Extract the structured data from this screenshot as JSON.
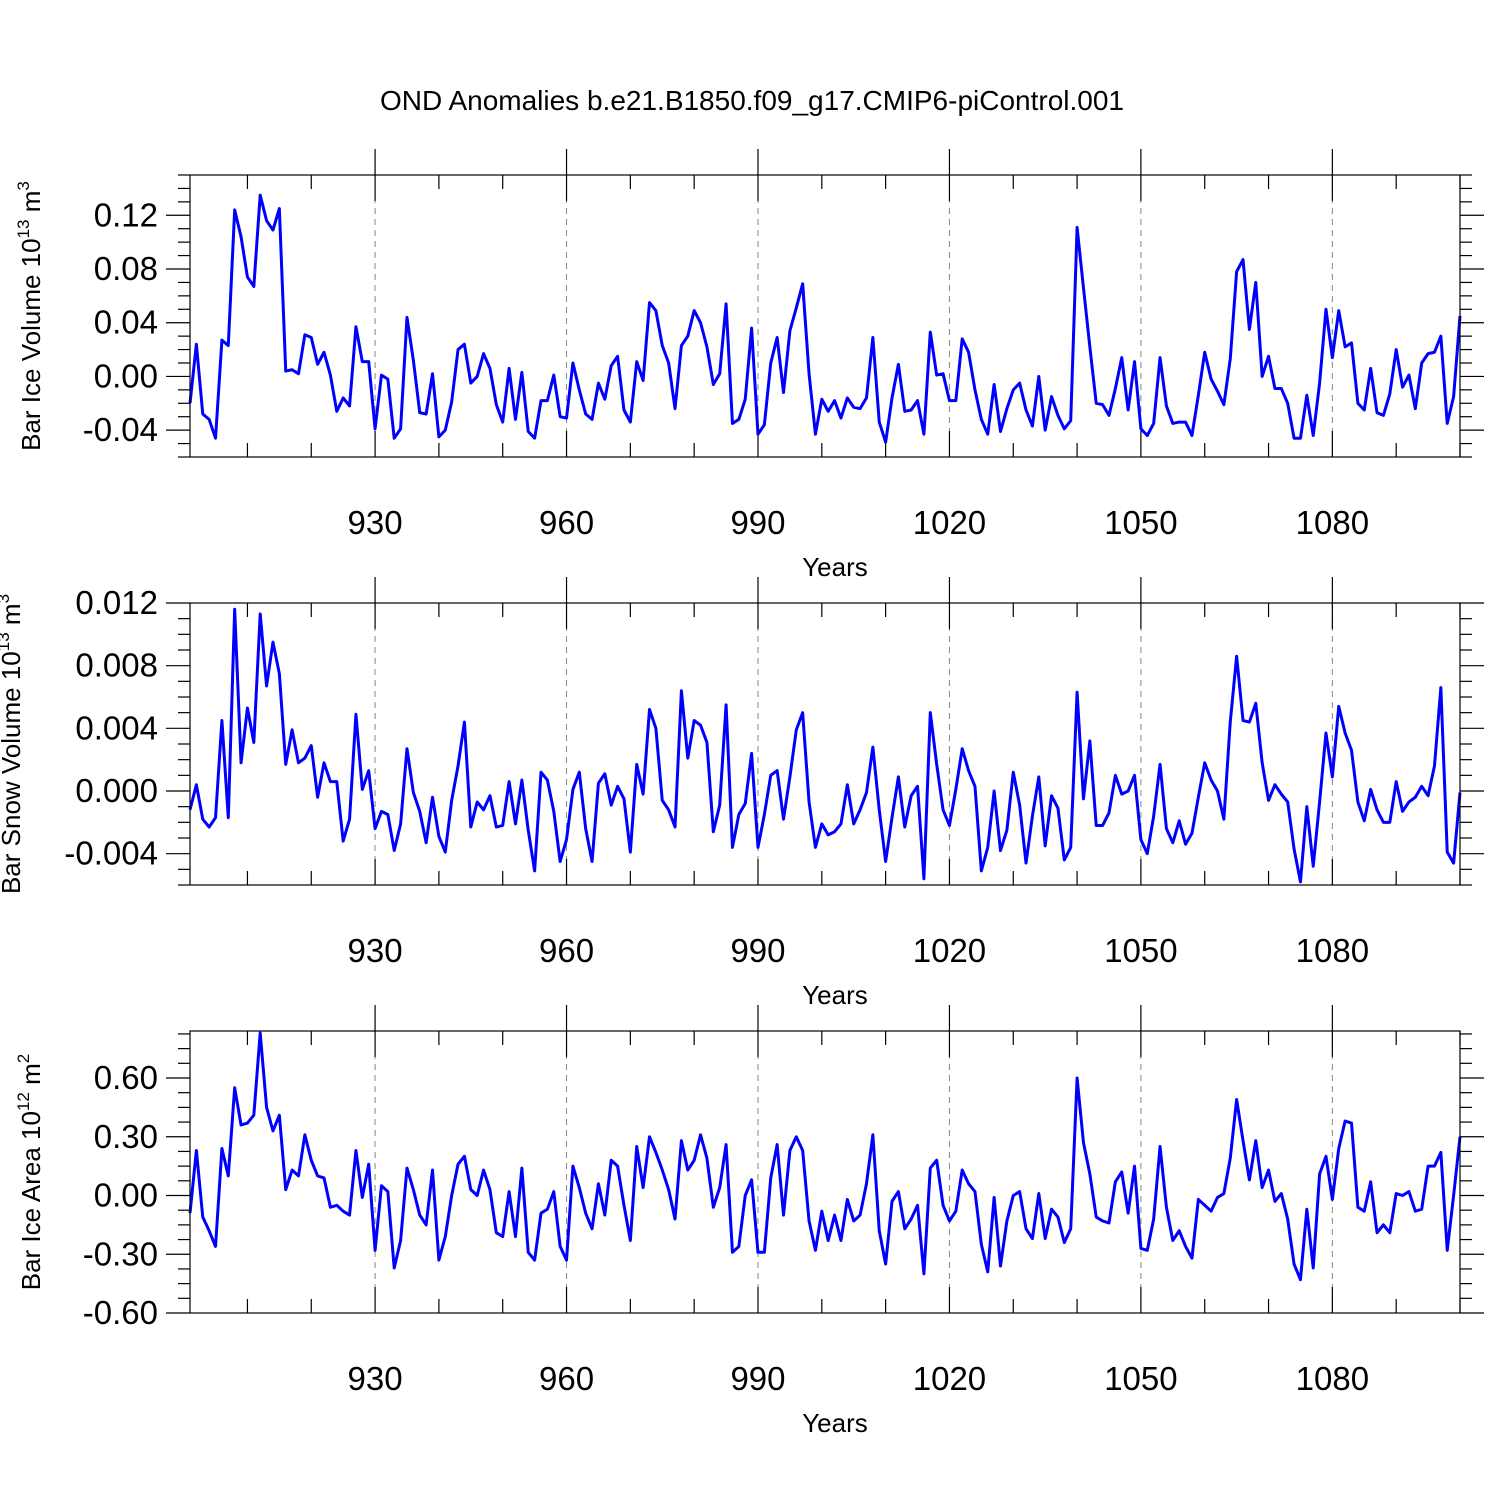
{
  "title": "OND Anomalies b.e21.B1850.f09_g17.CMIP6-piControl.001",
  "colors": {
    "line": "#0000ff",
    "axis": "#000000",
    "grid": "#888888"
  },
  "chart_data": [
    {
      "type": "line",
      "ylabel": {
        "text": "Bar Ice Volume 10",
        "sup": "13",
        "unit": " m",
        "unit_sup": "3"
      },
      "xlabel": "Years",
      "xlim": [
        901,
        1100
      ],
      "ylim": [
        -0.06,
        0.15
      ],
      "xticks": [
        930,
        960,
        990,
        1020,
        1050,
        1080
      ],
      "yticks": [
        -0.04,
        0.0,
        0.04,
        0.08,
        0.12
      ],
      "ytick_labels": [
        "-0.04",
        "0.00",
        "0.04",
        "0.08",
        "0.12"
      ],
      "x_start": 901,
      "values": [
        -0.02,
        0.024,
        -0.028,
        -0.032,
        -0.046,
        0.027,
        0.023,
        0.124,
        0.104,
        0.074,
        0.067,
        0.135,
        0.116,
        0.109,
        0.125,
        0.004,
        0.005,
        0.002,
        0.031,
        0.029,
        0.009,
        0.018,
        0.001,
        -0.026,
        -0.016,
        -0.022,
        0.037,
        0.011,
        0.011,
        -0.039,
        0.001,
        -0.002,
        -0.046,
        -0.039,
        0.044,
        0.012,
        -0.027,
        -0.028,
        0.002,
        -0.045,
        -0.04,
        -0.019,
        0.02,
        0.024,
        -0.005,
        0.0,
        0.017,
        0.006,
        -0.021,
        -0.034,
        0.006,
        -0.032,
        0.003,
        -0.041,
        -0.046,
        -0.018,
        -0.018,
        0.001,
        -0.03,
        -0.031,
        0.01,
        -0.01,
        -0.028,
        -0.032,
        -0.005,
        -0.017,
        0.008,
        0.015,
        -0.025,
        -0.034,
        0.011,
        -0.003,
        0.055,
        0.049,
        0.023,
        0.01,
        -0.024,
        0.023,
        0.03,
        0.049,
        0.04,
        0.022,
        -0.006,
        0.002,
        0.054,
        -0.035,
        -0.032,
        -0.017,
        0.036,
        -0.043,
        -0.036,
        0.01,
        0.029,
        -0.012,
        0.034,
        0.051,
        0.069,
        0.002,
        -0.043,
        -0.017,
        -0.026,
        -0.018,
        -0.031,
        -0.016,
        -0.023,
        -0.024,
        -0.016,
        0.029,
        -0.034,
        -0.049,
        -0.016,
        0.009,
        -0.026,
        -0.025,
        -0.018,
        -0.043,
        0.033,
        0.001,
        0.002,
        -0.018,
        -0.018,
        0.028,
        0.018,
        -0.01,
        -0.032,
        -0.043,
        -0.006,
        -0.041,
        -0.024,
        -0.01,
        -0.005,
        -0.025,
        -0.037,
        0.0,
        -0.04,
        -0.015,
        -0.029,
        -0.039,
        -0.033,
        0.111,
        0.066,
        0.022,
        -0.02,
        -0.021,
        -0.029,
        -0.009,
        0.014,
        -0.025,
        0.011,
        -0.039,
        -0.044,
        -0.035,
        0.014,
        -0.022,
        -0.035,
        -0.034,
        -0.034,
        -0.044,
        -0.014,
        0.018,
        -0.002,
        -0.011,
        -0.021,
        0.013,
        0.078,
        0.087,
        0.035,
        0.07,
        0.0,
        0.015,
        -0.009,
        -0.009,
        -0.02,
        -0.046,
        -0.046,
        -0.014,
        -0.044,
        -0.005,
        0.05,
        0.014,
        0.049,
        0.022,
        0.025,
        -0.02,
        -0.025,
        0.006,
        -0.027,
        -0.029,
        -0.013,
        0.02,
        -0.008,
        0.001,
        -0.024,
        0.01,
        0.017,
        0.018,
        0.03,
        -0.035,
        -0.015,
        0.045
      ]
    },
    {
      "type": "line",
      "ylabel": {
        "text": "Bar Snow Volume 10",
        "sup": "13",
        "unit": " m",
        "unit_sup": "3"
      },
      "xlabel": "Years",
      "xlim": [
        901,
        1100
      ],
      "ylim": [
        -0.006,
        0.012
      ],
      "xticks": [
        930,
        960,
        990,
        1020,
        1050,
        1080
      ],
      "yticks": [
        -0.004,
        0.0,
        0.004,
        0.008,
        0.012
      ],
      "ytick_labels": [
        "-0.004",
        "0.000",
        "0.004",
        "0.008",
        "0.012"
      ],
      "x_start": 901,
      "values": [
        -0.0012,
        0.0004,
        -0.0018,
        -0.0023,
        -0.0017,
        0.0045,
        -0.0017,
        0.0116,
        0.0018,
        0.0053,
        0.0031,
        0.0113,
        0.0067,
        0.0095,
        0.0075,
        0.0017,
        0.0039,
        0.0018,
        0.0021,
        0.0029,
        -0.0004,
        0.0018,
        0.0006,
        0.0006,
        -0.0032,
        -0.0018,
        0.0049,
        0.0001,
        0.0013,
        -0.0024,
        -0.0013,
        -0.0015,
        -0.0038,
        -0.0021,
        0.0027,
        -0.0001,
        -0.0013,
        -0.0033,
        -0.0004,
        -0.0029,
        -0.0039,
        -0.0006,
        0.0016,
        0.0044,
        -0.0023,
        -0.0007,
        -0.0012,
        -0.0003,
        -0.0023,
        -0.0022,
        0.0006,
        -0.0021,
        0.0007,
        -0.0025,
        -0.0051,
        0.0012,
        0.0007,
        -0.0013,
        -0.0045,
        -0.0031,
        0.0001,
        0.0012,
        -0.0024,
        -0.0045,
        0.0005,
        0.0011,
        -0.0009,
        0.0003,
        -0.0005,
        -0.0039,
        0.0017,
        -0.0002,
        0.0052,
        0.004,
        -0.0006,
        -0.0012,
        -0.0023,
        0.0064,
        0.0021,
        0.0045,
        0.0042,
        0.0031,
        -0.0026,
        -0.0009,
        0.0055,
        -0.0036,
        -0.0015,
        -0.0008,
        0.0024,
        -0.0036,
        -0.0015,
        0.001,
        0.0013,
        -0.0018,
        0.0009,
        0.0039,
        0.005,
        -0.0007,
        -0.0036,
        -0.0021,
        -0.0028,
        -0.0026,
        -0.0021,
        0.0004,
        -0.0021,
        -0.0012,
        -0.0001,
        0.0028,
        -0.0012,
        -0.0045,
        -0.0017,
        0.0009,
        -0.0023,
        -0.0003,
        0.0003,
        -0.0056,
        0.005,
        0.0017,
        -0.0012,
        -0.0022,
        0.0001,
        0.0027,
        0.0013,
        0.0003,
        -0.0051,
        -0.0036,
        0.0,
        -0.0038,
        -0.0025,
        0.0012,
        -0.0009,
        -0.0046,
        -0.0016,
        0.0009,
        -0.0035,
        -0.0003,
        -0.0011,
        -0.0044,
        -0.0036,
        0.0063,
        -0.0005,
        0.0032,
        -0.0022,
        -0.0022,
        -0.0014,
        0.001,
        -0.0002,
        0.0,
        0.001,
        -0.0031,
        -0.004,
        -0.0016,
        0.0017,
        -0.0024,
        -0.0033,
        -0.0019,
        -0.0034,
        -0.0027,
        -0.0004,
        0.0018,
        0.0007,
        0.0,
        -0.0018,
        0.0044,
        0.0086,
        0.0045,
        0.0044,
        0.0056,
        0.0018,
        -0.0006,
        0.0004,
        -0.0002,
        -0.0007,
        -0.0037,
        -0.0058,
        -0.001,
        -0.0048,
        -0.0007,
        0.0037,
        0.0009,
        0.0054,
        0.0037,
        0.0026,
        -0.0007,
        -0.0019,
        0.0001,
        -0.0012,
        -0.002,
        -0.002,
        0.0006,
        -0.0013,
        -0.0007,
        -0.0004,
        0.0003,
        -0.0003,
        0.0016,
        0.0066,
        -0.0039,
        -0.0046,
        -0.0001
      ]
    },
    {
      "type": "line",
      "ylabel": {
        "text": "Bar Ice Area 10",
        "sup": "12",
        "unit": " m",
        "unit_sup": "2"
      },
      "xlabel": "Years",
      "xlim": [
        901,
        1100
      ],
      "ylim": [
        -0.6,
        0.84
      ],
      "xticks": [
        930,
        960,
        990,
        1020,
        1050,
        1080
      ],
      "yticks": [
        -0.6,
        -0.3,
        0.0,
        0.3,
        0.6
      ],
      "ytick_labels": [
        "-0.60",
        "-0.30",
        "0.00",
        "0.30",
        "0.60"
      ],
      "x_start": 901,
      "values": [
        -0.09,
        0.23,
        -0.11,
        -0.18,
        -0.26,
        0.24,
        0.1,
        0.55,
        0.36,
        0.37,
        0.41,
        0.83,
        0.45,
        0.33,
        0.41,
        0.03,
        0.13,
        0.1,
        0.31,
        0.18,
        0.1,
        0.09,
        -0.06,
        -0.05,
        -0.08,
        -0.1,
        0.23,
        -0.01,
        0.16,
        -0.28,
        0.05,
        0.02,
        -0.37,
        -0.23,
        0.14,
        0.03,
        -0.1,
        -0.15,
        0.13,
        -0.33,
        -0.21,
        0.0,
        0.16,
        0.2,
        0.03,
        0.0,
        0.13,
        0.03,
        -0.19,
        -0.21,
        0.02,
        -0.21,
        0.14,
        -0.29,
        -0.33,
        -0.09,
        -0.07,
        0.02,
        -0.26,
        -0.33,
        0.15,
        0.04,
        -0.09,
        -0.17,
        0.06,
        -0.1,
        0.18,
        0.15,
        -0.05,
        -0.23,
        0.25,
        0.04,
        0.3,
        0.22,
        0.13,
        0.03,
        -0.12,
        0.28,
        0.13,
        0.18,
        0.31,
        0.19,
        -0.06,
        0.04,
        0.26,
        -0.29,
        -0.26,
        0.0,
        0.08,
        -0.29,
        -0.29,
        0.09,
        0.26,
        -0.1,
        0.23,
        0.3,
        0.23,
        -0.13,
        -0.28,
        -0.08,
        -0.23,
        -0.1,
        -0.23,
        -0.02,
        -0.13,
        -0.1,
        0.06,
        0.31,
        -0.18,
        -0.35,
        -0.03,
        0.02,
        -0.17,
        -0.12,
        -0.05,
        -0.4,
        0.14,
        0.18,
        -0.05,
        -0.13,
        -0.08,
        0.13,
        0.06,
        0.02,
        -0.25,
        -0.39,
        -0.01,
        -0.36,
        -0.13,
        0.0,
        0.02,
        -0.17,
        -0.22,
        0.01,
        -0.22,
        -0.07,
        -0.11,
        -0.24,
        -0.17,
        0.6,
        0.27,
        0.11,
        -0.11,
        -0.13,
        -0.14,
        0.07,
        0.12,
        -0.09,
        0.15,
        -0.27,
        -0.28,
        -0.12,
        0.25,
        -0.06,
        -0.23,
        -0.18,
        -0.26,
        -0.32,
        -0.02,
        -0.05,
        -0.08,
        -0.01,
        0.01,
        0.19,
        0.49,
        0.28,
        0.08,
        0.28,
        0.04,
        0.13,
        -0.03,
        0.01,
        -0.12,
        -0.35,
        -0.43,
        -0.07,
        -0.37,
        0.11,
        0.2,
        -0.02,
        0.24,
        0.38,
        0.37,
        -0.06,
        -0.08,
        0.07,
        -0.19,
        -0.15,
        -0.19,
        0.01,
        0.0,
        0.02,
        -0.08,
        -0.07,
        0.15,
        0.15,
        0.22,
        -0.28,
        0.0,
        0.3
      ]
    }
  ]
}
